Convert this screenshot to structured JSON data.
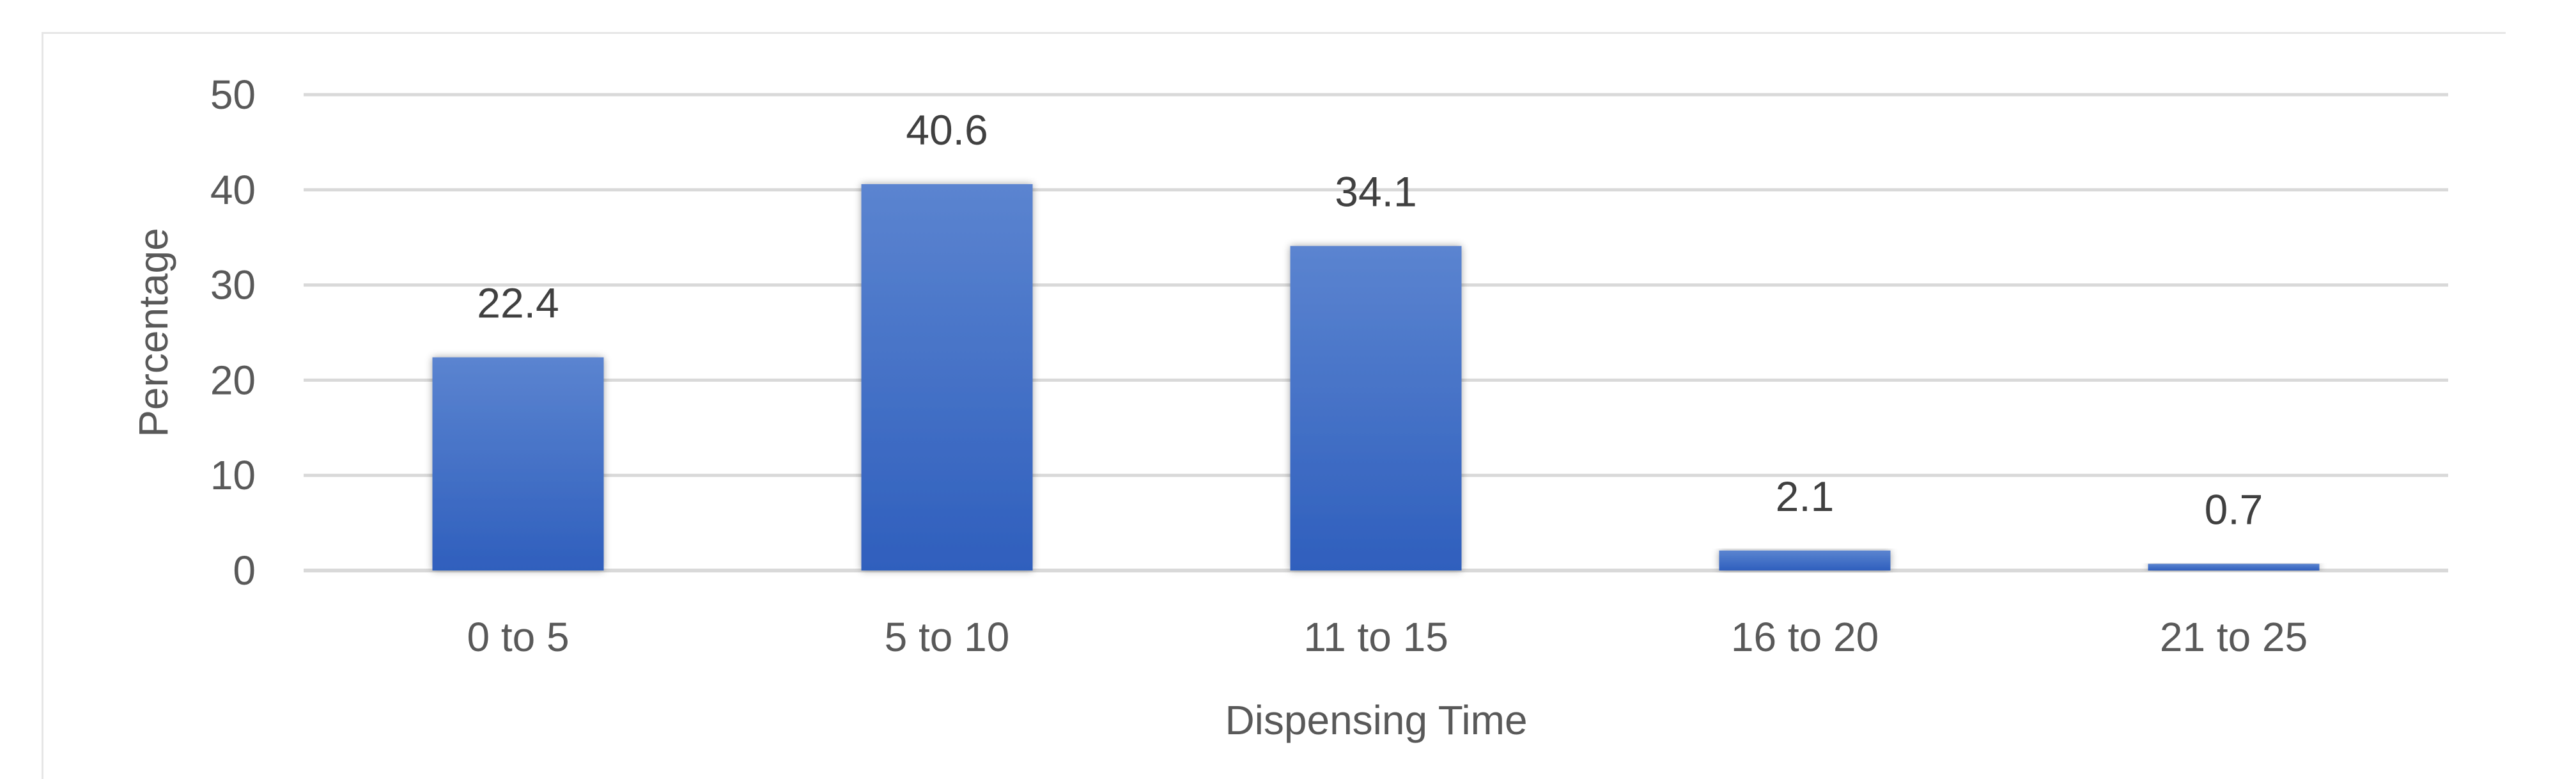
{
  "chart_data": {
    "type": "bar",
    "categories": [
      "0 to 5",
      "5 to 10",
      "11 to 15",
      "16 to 20",
      "21 to 25"
    ],
    "values": [
      22.4,
      40.6,
      34.1,
      2.1,
      0.7
    ],
    "data_labels": [
      "22.4",
      "40.6",
      "34.1",
      "2.1",
      "0.7"
    ],
    "title": "",
    "xlabel": "Dispensing Time",
    "ylabel": "Percentage",
    "ylim": [
      0,
      50
    ],
    "yticks": [
      0,
      10,
      20,
      30,
      40,
      50
    ],
    "grid": true,
    "legend": "none",
    "colors": {
      "bar_top": "#5b84d0",
      "bar_bottom": "#2f5fbd",
      "grid": "#d9d9d9",
      "axis": "#d9d9d9",
      "text": "#595959"
    }
  }
}
